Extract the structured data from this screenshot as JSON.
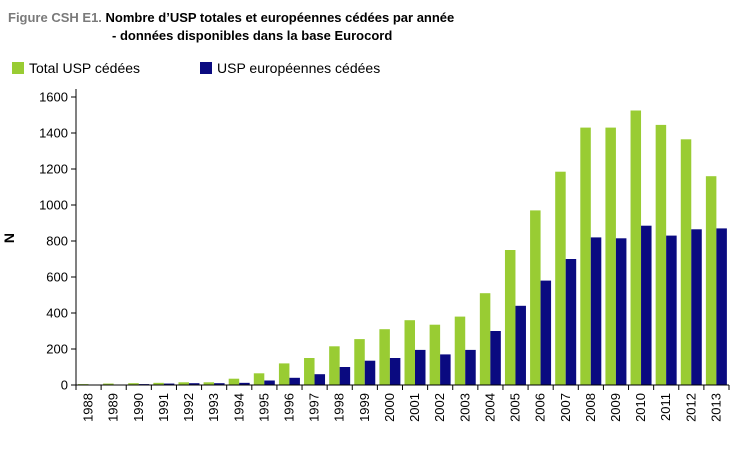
{
  "title": {
    "prefix": "Figure CSH E1.",
    "line1": "Nombre d’USP totales et européennes cédées par année",
    "line2": "- données disponibles dans la base Eurocord"
  },
  "colors": {
    "total": "#99cc33",
    "europe": "#0a0a80"
  },
  "chart_data": {
    "type": "bar",
    "categories": [
      "1988",
      "1989",
      "1990",
      "1991",
      "1992",
      "1993",
      "1994",
      "1995",
      "1996",
      "1997",
      "1998",
      "1999",
      "2000",
      "2001",
      "2002",
      "2003",
      "2004",
      "2005",
      "2006",
      "2007",
      "2008",
      "2009",
      "2010",
      "2011",
      "2012",
      "2013"
    ],
    "series": [
      {
        "name": "Total USP cédées",
        "values": [
          5,
          8,
          10,
          12,
          15,
          15,
          35,
          65,
          120,
          150,
          215,
          255,
          310,
          360,
          335,
          380,
          510,
          750,
          970,
          1185,
          1430,
          1430,
          1525,
          1445,
          1365,
          1160
        ]
      },
      {
        "name": "USP européennes cédées",
        "values": [
          0,
          0,
          5,
          8,
          10,
          10,
          12,
          25,
          40,
          60,
          100,
          135,
          150,
          195,
          170,
          195,
          300,
          440,
          580,
          700,
          820,
          815,
          885,
          830,
          865,
          870
        ]
      }
    ],
    "ylabel": "N",
    "xlabel": "",
    "ylim": [
      0,
      1600
    ],
    "yticks": [
      0,
      200,
      400,
      600,
      800,
      1000,
      1200,
      1400,
      1600
    ],
    "grid": false,
    "legend": "top-left"
  }
}
